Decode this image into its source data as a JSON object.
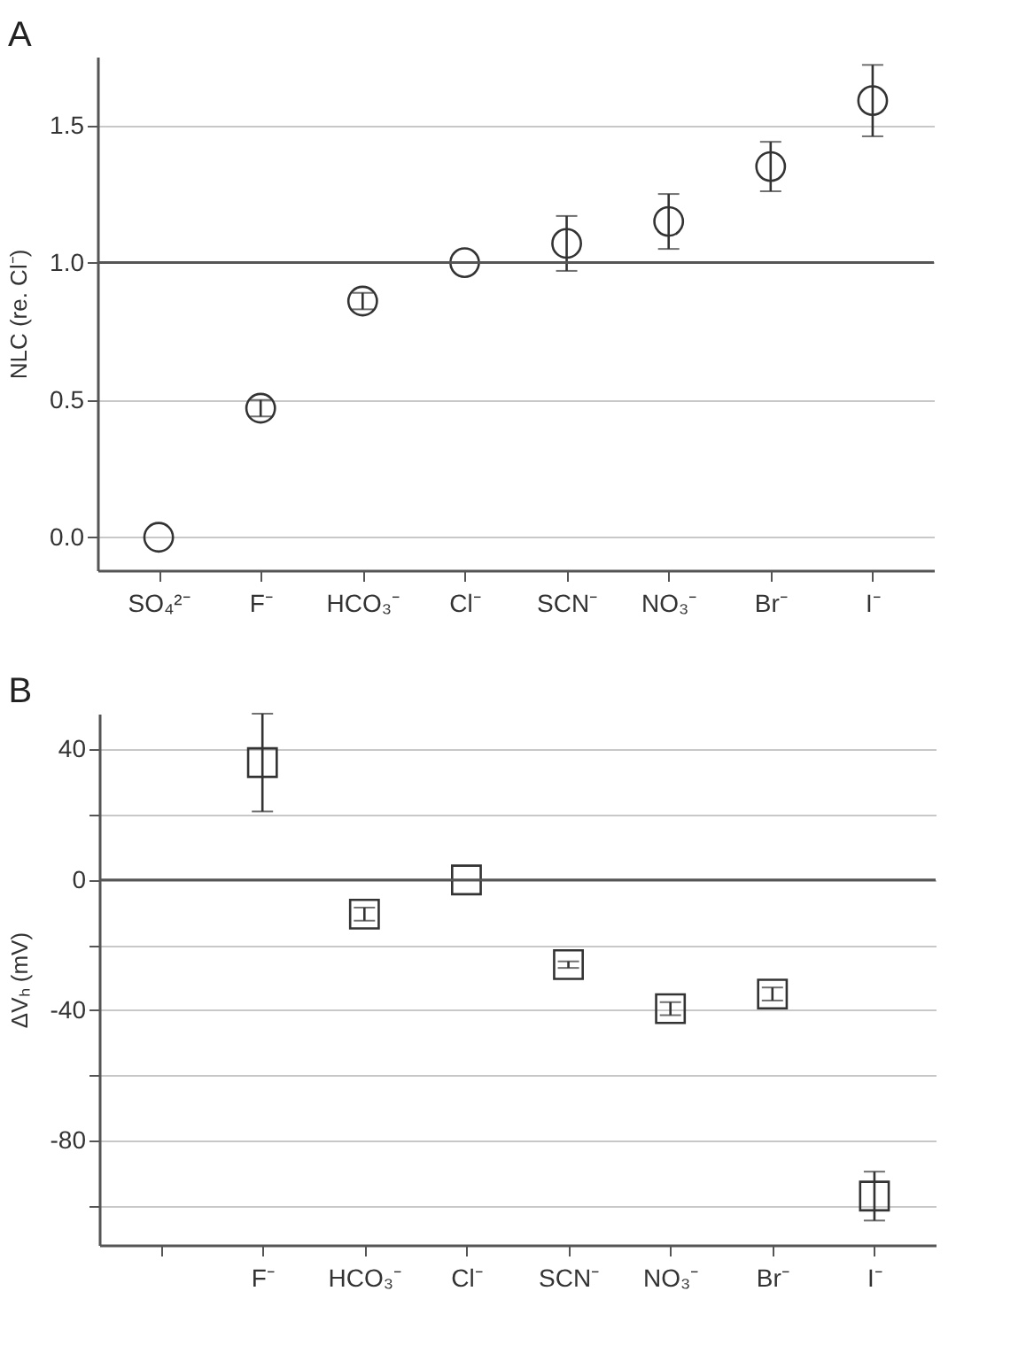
{
  "chart_data": [
    {
      "type": "scatter",
      "title": "A",
      "ylabel": "NLC  (re. Cl⁻)",
      "categories": [
        "SO₄²⁻",
        "F⁻",
        "HCO₃⁻",
        "Cl⁻",
        "SCN⁻",
        "NO₃⁻",
        "Br⁻",
        "I⁻"
      ],
      "series": [
        {
          "color": "#333333",
          "values": [
            0,
            0.47,
            0.86,
            1.0,
            1.07,
            1.15,
            1.35,
            1.59
          ],
          "errors": [
            null,
            0.03,
            0.03,
            null,
            0.1,
            0.1,
            0.09,
            0.13
          ]
        }
      ],
      "ylim": [
        -0.12,
        1.75
      ],
      "yticks": [
        {
          "value": 0,
          "label": "0.0"
        },
        0.5,
        {
          "value": 1,
          "label": "1.0"
        },
        1.5
      ],
      "grid": "y",
      "marker": "circle",
      "ref_lines": [
        {
          "axis": "y",
          "value": 1.0,
          "color": "#555555"
        }
      ]
    },
    {
      "type": "scatter",
      "title": "B",
      "ylabel": "ΔVₕ (mV)",
      "categories": [
        null,
        "F⁻",
        "HCO₃⁻",
        "Cl⁻",
        "SCN⁻",
        "NO₃⁻",
        "Br⁻",
        "I⁻"
      ],
      "series": [
        {
          "color": "#333333",
          "values": [
            null,
            36,
            -10.5,
            0,
            -26,
            -39.5,
            -35,
            -97
          ],
          "errors": [
            null,
            15,
            2,
            null,
            1,
            2,
            2,
            7.5
          ]
        }
      ],
      "ylim": [
        -112,
        51
      ],
      "yticks": [
        {
          "value": -100,
          "label": null
        },
        -80,
        {
          "value": -60,
          "label": null
        },
        -40,
        {
          "value": -20,
          "label": null
        },
        0,
        {
          "value": 20,
          "label": null
        },
        40
      ],
      "grid": "y",
      "marker": "square",
      "ref_lines": [
        {
          "axis": "y",
          "value": 0,
          "color": "#555555"
        }
      ]
    }
  ]
}
